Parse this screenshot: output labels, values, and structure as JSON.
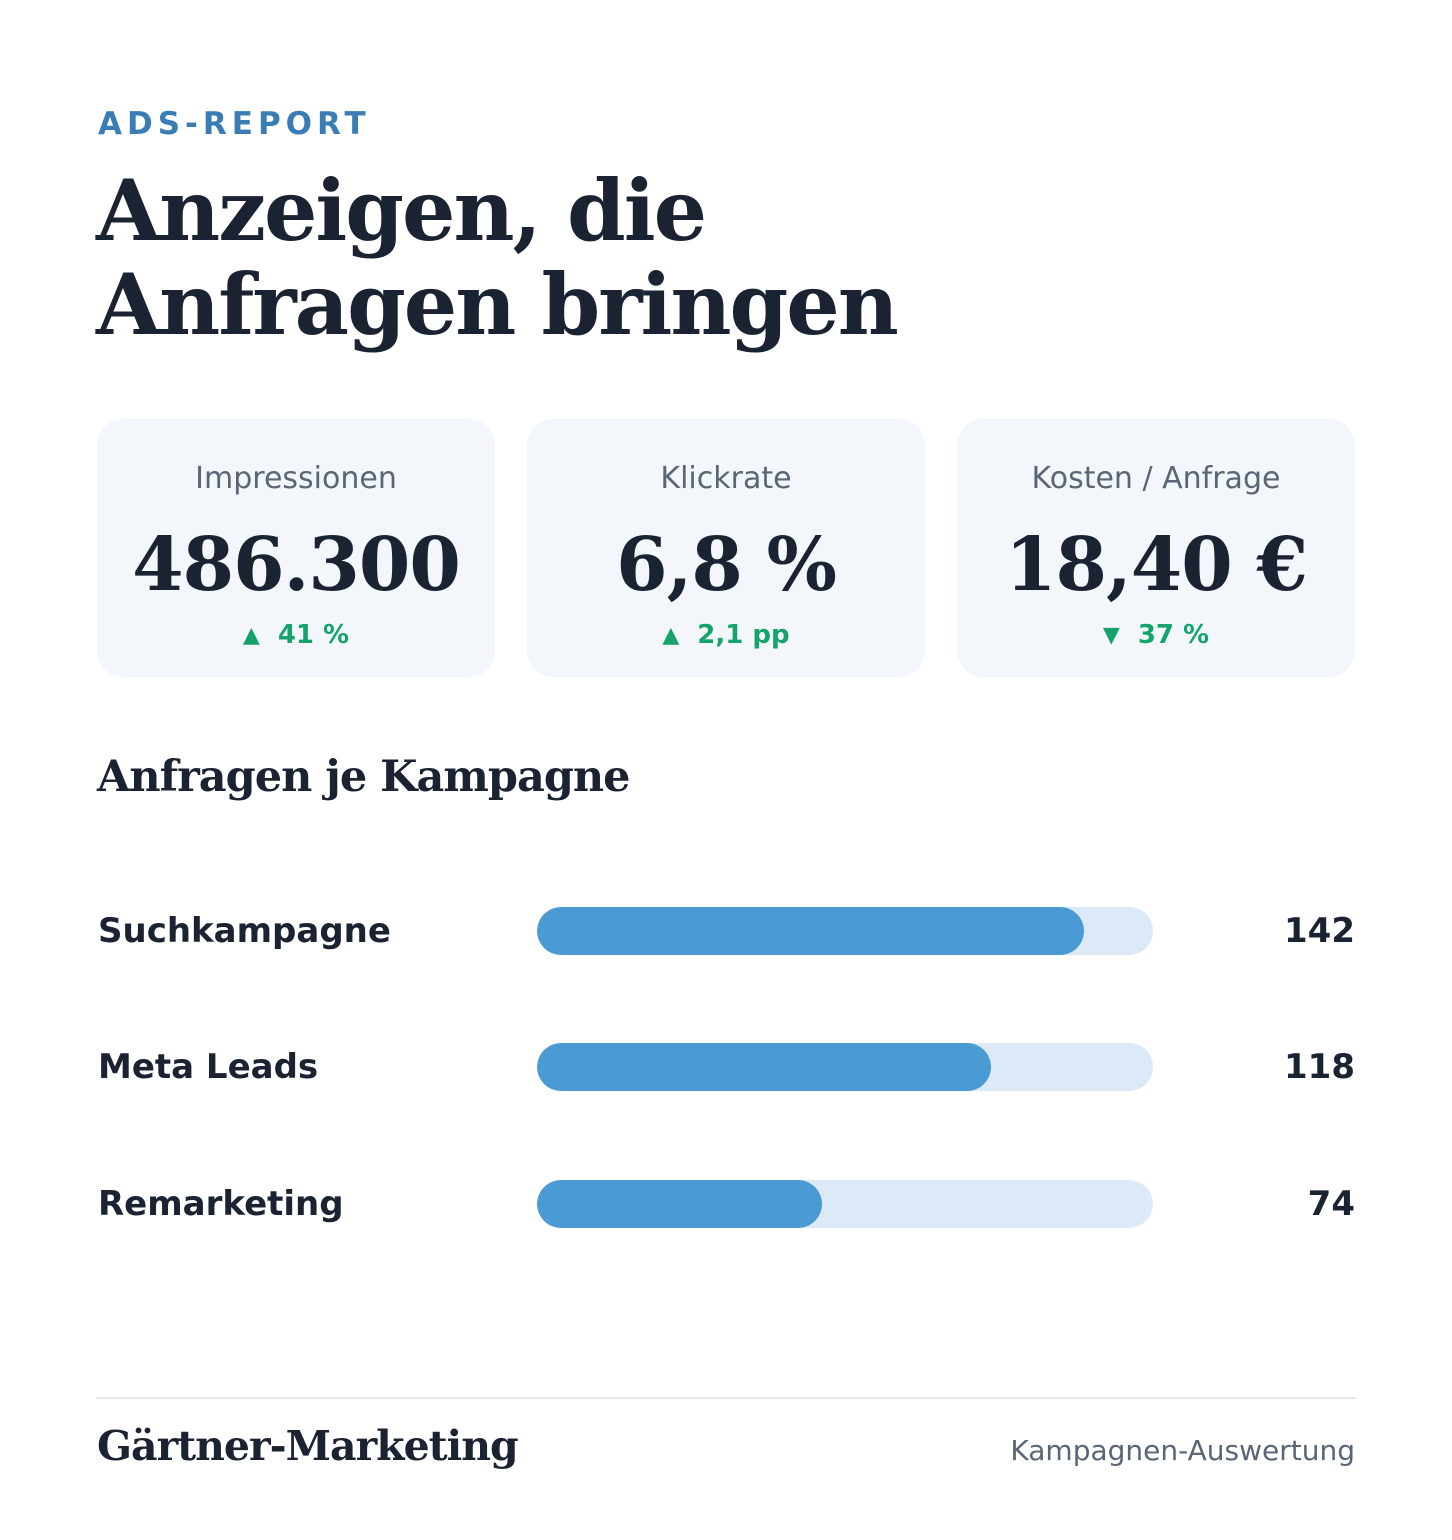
{
  "header": {
    "eyebrow": "ADS-REPORT",
    "title_line1": "Anzeigen, die",
    "title_line2": "Anfragen bringen"
  },
  "kpis": [
    {
      "label": "Impressionen",
      "value": "486.300",
      "delta_arrow": "▲",
      "delta": "41 %",
      "direction": "up"
    },
    {
      "label": "Klickrate",
      "value": "6,8 %",
      "delta_arrow": "▲",
      "delta": "2,1 pp",
      "direction": "up"
    },
    {
      "label": "Kosten / Anfrage",
      "value": "18,40 €",
      "delta_arrow": "▼",
      "delta": "37 %",
      "direction": "down"
    }
  ],
  "section": {
    "title": "Anfragen je Kampagne"
  },
  "chart_data": {
    "type": "bar",
    "orientation": "horizontal",
    "title": "Anfragen je Kampagne",
    "categories": [
      "Suchkampagne",
      "Meta Leads",
      "Remarketing"
    ],
    "values": [
      142,
      118,
      74
    ],
    "value_labels": [
      "142",
      "118",
      "74"
    ],
    "xlim": [
      0,
      160
    ],
    "grid": false,
    "colors": {
      "bar": "#4a9bd4",
      "track": "#dce9f6"
    }
  },
  "footer": {
    "brand": "Gärtner-Marketing",
    "note": "Kampagnen-Auswertung"
  },
  "colors": {
    "accent": "#3a7db5",
    "positive": "#14a36a",
    "text": "#1b2232",
    "muted": "#5a6577",
    "card": "#f3f7fb"
  }
}
